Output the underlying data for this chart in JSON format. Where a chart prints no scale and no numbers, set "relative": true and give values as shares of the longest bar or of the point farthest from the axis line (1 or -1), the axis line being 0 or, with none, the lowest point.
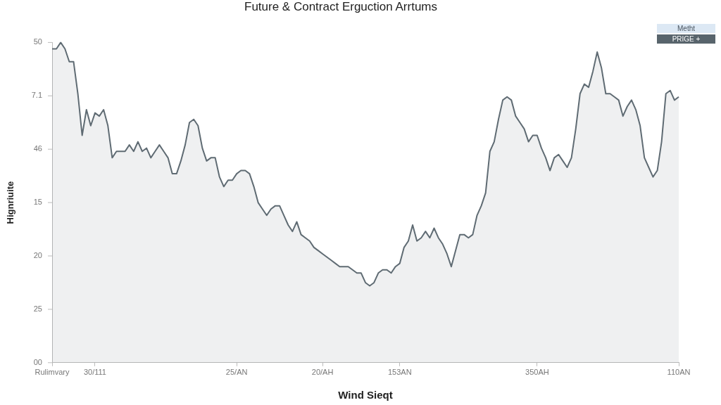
{
  "chart_data": {
    "type": "area",
    "relative": true,
    "title": "Future & Contract Erguction Arrtums",
    "xlabel": "Wind Sieqt",
    "ylabel": "Hignriuite",
    "annotations": [
      "50",
      "7.1",
      "46",
      "15",
      "20",
      "25",
      "00",
      "Metht",
      "PRIGE +"
    ],
    "categories": [
      "Rulimvary",
      null,
      null,
      null,
      null,
      null,
      null,
      null,
      null,
      null,
      "30/111",
      null,
      null,
      null,
      null,
      null,
      null,
      null,
      null,
      null,
      null,
      null,
      null,
      null,
      null,
      null,
      null,
      null,
      null,
      null,
      null,
      null,
      null,
      null,
      null,
      null,
      null,
      null,
      null,
      null,
      null,
      null,
      null,
      "25/AN",
      null,
      null,
      null,
      null,
      null,
      null,
      null,
      null,
      null,
      null,
      null,
      null,
      null,
      null,
      null,
      null,
      null,
      null,
      null,
      "20/AH",
      null,
      null,
      null,
      null,
      null,
      null,
      null,
      null,
      null,
      null,
      null,
      null,
      null,
      null,
      null,
      null,
      null,
      "153AN",
      null,
      null,
      null,
      null,
      null,
      null,
      null,
      null,
      null,
      null,
      null,
      null,
      null,
      null,
      null,
      null,
      null,
      null,
      null,
      null,
      null,
      null,
      null,
      null,
      null,
      null,
      null,
      null,
      null,
      null,
      null,
      "350AH",
      null,
      null,
      null,
      null,
      null,
      null,
      null,
      null,
      null,
      null,
      null,
      null,
      null,
      null,
      null,
      null,
      null,
      null,
      null,
      null,
      null,
      null,
      null,
      null,
      null,
      null,
      null,
      null,
      null,
      null,
      null,
      null,
      "110AN"
    ],
    "series": [
      {
        "color": "#5f6b73",
        "values": [
          0.98,
          0.98,
          1,
          0.98,
          0.94,
          0.94,
          0.84,
          0.71,
          0.79,
          0.74,
          0.78,
          0.77,
          0.79,
          0.74,
          0.64,
          0.66,
          0.66,
          0.66,
          0.68,
          0.66,
          0.69,
          0.66,
          0.67,
          0.64,
          0.66,
          0.68,
          0.66,
          0.64,
          0.59,
          0.59,
          0.63,
          0.68,
          0.75,
          0.76,
          0.74,
          0.67,
          0.63,
          0.64,
          0.64,
          0.58,
          0.55,
          0.57,
          0.57,
          0.59,
          0.6,
          0.6,
          0.59,
          0.55,
          0.5,
          0.48,
          0.46,
          0.48,
          0.49,
          0.49,
          0.46,
          0.43,
          0.41,
          0.44,
          0.4,
          0.39,
          0.38,
          0.36,
          0.35,
          0.34,
          0.33,
          0.32,
          0.31,
          0.3,
          0.3,
          0.3,
          0.29,
          0.28,
          0.28,
          0.25,
          0.24,
          0.25,
          0.28,
          0.29,
          0.29,
          0.28,
          0.3,
          0.31,
          0.36,
          0.38,
          0.43,
          0.38,
          0.39,
          0.41,
          0.39,
          0.42,
          0.39,
          0.37,
          0.34,
          0.3,
          0.35,
          0.4,
          0.4,
          0.39,
          0.4,
          0.46,
          0.49,
          0.53,
          0.66,
          0.69,
          0.76,
          0.82,
          0.83,
          0.82,
          0.77,
          0.75,
          0.73,
          0.69,
          0.71,
          0.71,
          0.67,
          0.64,
          0.6,
          0.64,
          0.65,
          0.63,
          0.61,
          0.64,
          0.73,
          0.84,
          0.87,
          0.86,
          0.91,
          0.97,
          0.92,
          0.84,
          0.84,
          0.83,
          0.82,
          0.77,
          0.8,
          0.82,
          0.79,
          0.74,
          0.64,
          0.61,
          0.58,
          0.6,
          0.69,
          0.84,
          0.85,
          0.82,
          0.83
        ]
      }
    ],
    "grid": false,
    "legend": false,
    "marker": "none",
    "line_style": "solid"
  }
}
